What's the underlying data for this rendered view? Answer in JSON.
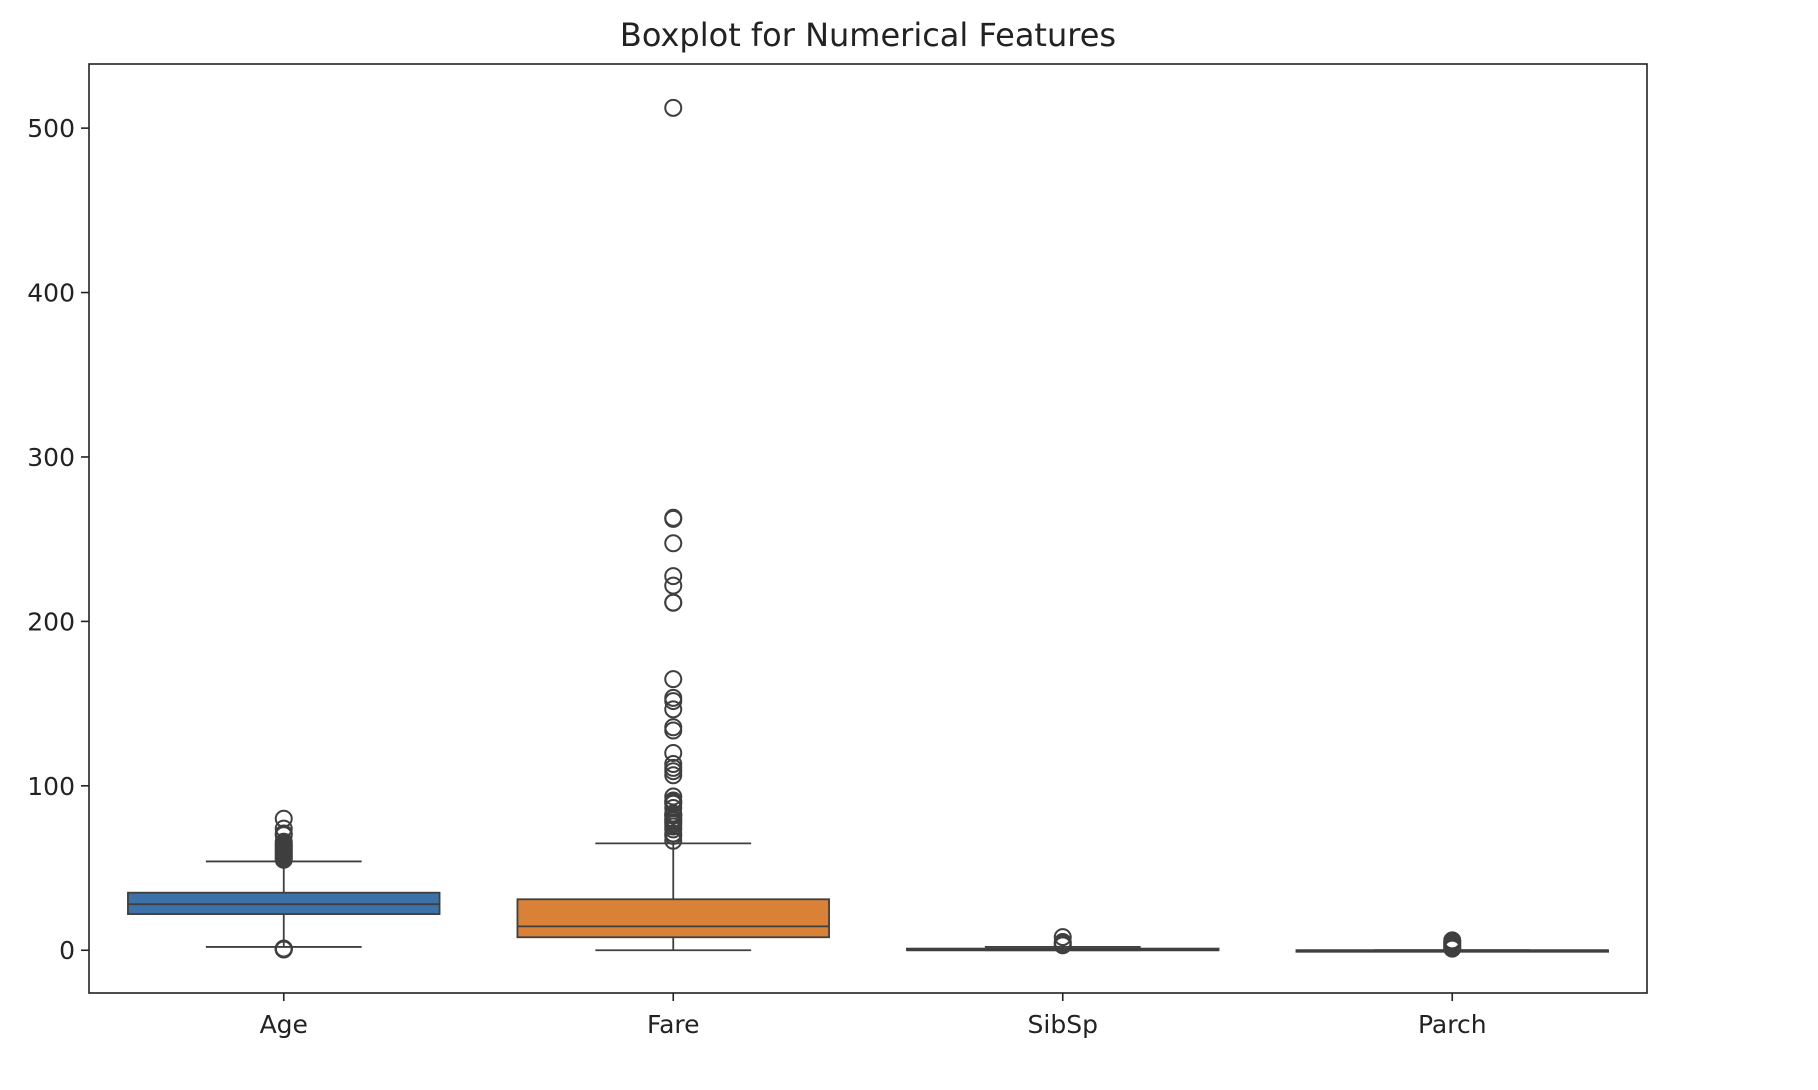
{
  "chart_data": {
    "type": "boxplot",
    "title": "Boxplot for Numerical Features",
    "xlabel": "",
    "ylabel": "",
    "ylim": [
      -26,
      539
    ],
    "yticks": [
      0,
      100,
      200,
      300,
      400,
      500
    ],
    "grid": false,
    "categories": [
      "Age",
      "Fare",
      "SibSp",
      "Parch"
    ],
    "boxes": [
      {
        "label": "Age",
        "color": "#3d72a8",
        "whisker_low": 2,
        "q1": 22,
        "median": 28,
        "q3": 35,
        "whisker_high": 54,
        "outliers": [
          0.42,
          0.67,
          0.75,
          0.83,
          0.92,
          1,
          55,
          56,
          57,
          58,
          59,
          60,
          61,
          62,
          63,
          64,
          65,
          66,
          70,
          71,
          74,
          80
        ]
      },
      {
        "label": "Fare",
        "color": "#da8138",
        "whisker_low": 0,
        "q1": 7.9,
        "median": 14.5,
        "q3": 31,
        "whisker_high": 65,
        "outliers": [
          66.6,
          69.55,
          71,
          73.5,
          75.25,
          76.73,
          77.96,
          79.2,
          80,
          81.86,
          82.17,
          83.16,
          86.5,
          89.1,
          90,
          91.08,
          93.5,
          106.43,
          108.9,
          110.88,
          113.28,
          120,
          133.65,
          135.63,
          146.52,
          151.55,
          153.46,
          164.87,
          211.34,
          211.5,
          221.78,
          227.53,
          247.52,
          262.38,
          263,
          512.33
        ]
      },
      {
        "label": "SibSp",
        "color": "#3a9a4f",
        "whisker_low": 0,
        "q1": 0,
        "median": 0,
        "q3": 1,
        "whisker_high": 2,
        "outliers": [
          3,
          4,
          5,
          8
        ]
      },
      {
        "label": "Parch",
        "color": "#c53a32",
        "whisker_low": 0,
        "q1": 0,
        "median": 0,
        "q3": 0,
        "whisker_high": 0,
        "outliers": [
          1,
          2,
          3,
          4,
          5,
          6
        ]
      }
    ]
  }
}
